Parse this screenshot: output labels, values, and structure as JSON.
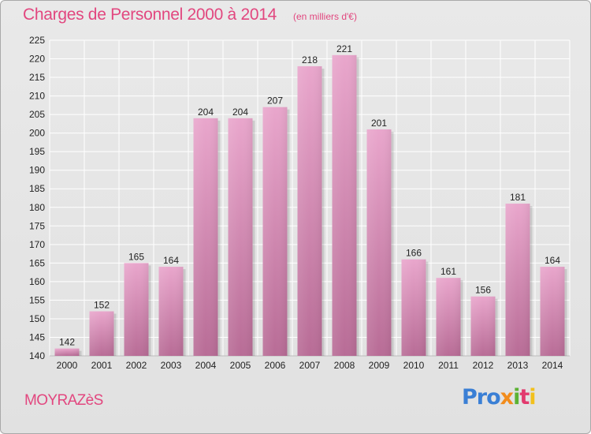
{
  "header": {
    "title": "Charges de Personnel 2000 à 2014",
    "subtitle": "(en milliers d'€)"
  },
  "footer": {
    "commune": "MOYRAZèS",
    "logo": [
      "Pro",
      "x",
      "i",
      "t",
      "i"
    ]
  },
  "colors": {
    "bar_top": "#e9a6cc",
    "bar_bottom": "#b86c96",
    "title": "#e2477f",
    "grid": "#ffffff"
  },
  "chart_data": {
    "type": "bar",
    "title": "Charges de Personnel 2000 à 2014",
    "subtitle": "(en milliers d'€)",
    "categories": [
      "2000",
      "2001",
      "2002",
      "2003",
      "2004",
      "2005",
      "2006",
      "2007",
      "2008",
      "2009",
      "2010",
      "2011",
      "2012",
      "2013",
      "2014"
    ],
    "values": [
      142,
      152,
      165,
      164,
      204,
      204,
      207,
      218,
      221,
      201,
      166,
      161,
      156,
      181,
      164
    ],
    "ylim": [
      140,
      225
    ],
    "yticks": [
      140,
      145,
      150,
      155,
      160,
      165,
      170,
      175,
      180,
      185,
      190,
      195,
      200,
      205,
      210,
      215,
      220,
      225
    ],
    "grid": true,
    "legend": "none"
  }
}
